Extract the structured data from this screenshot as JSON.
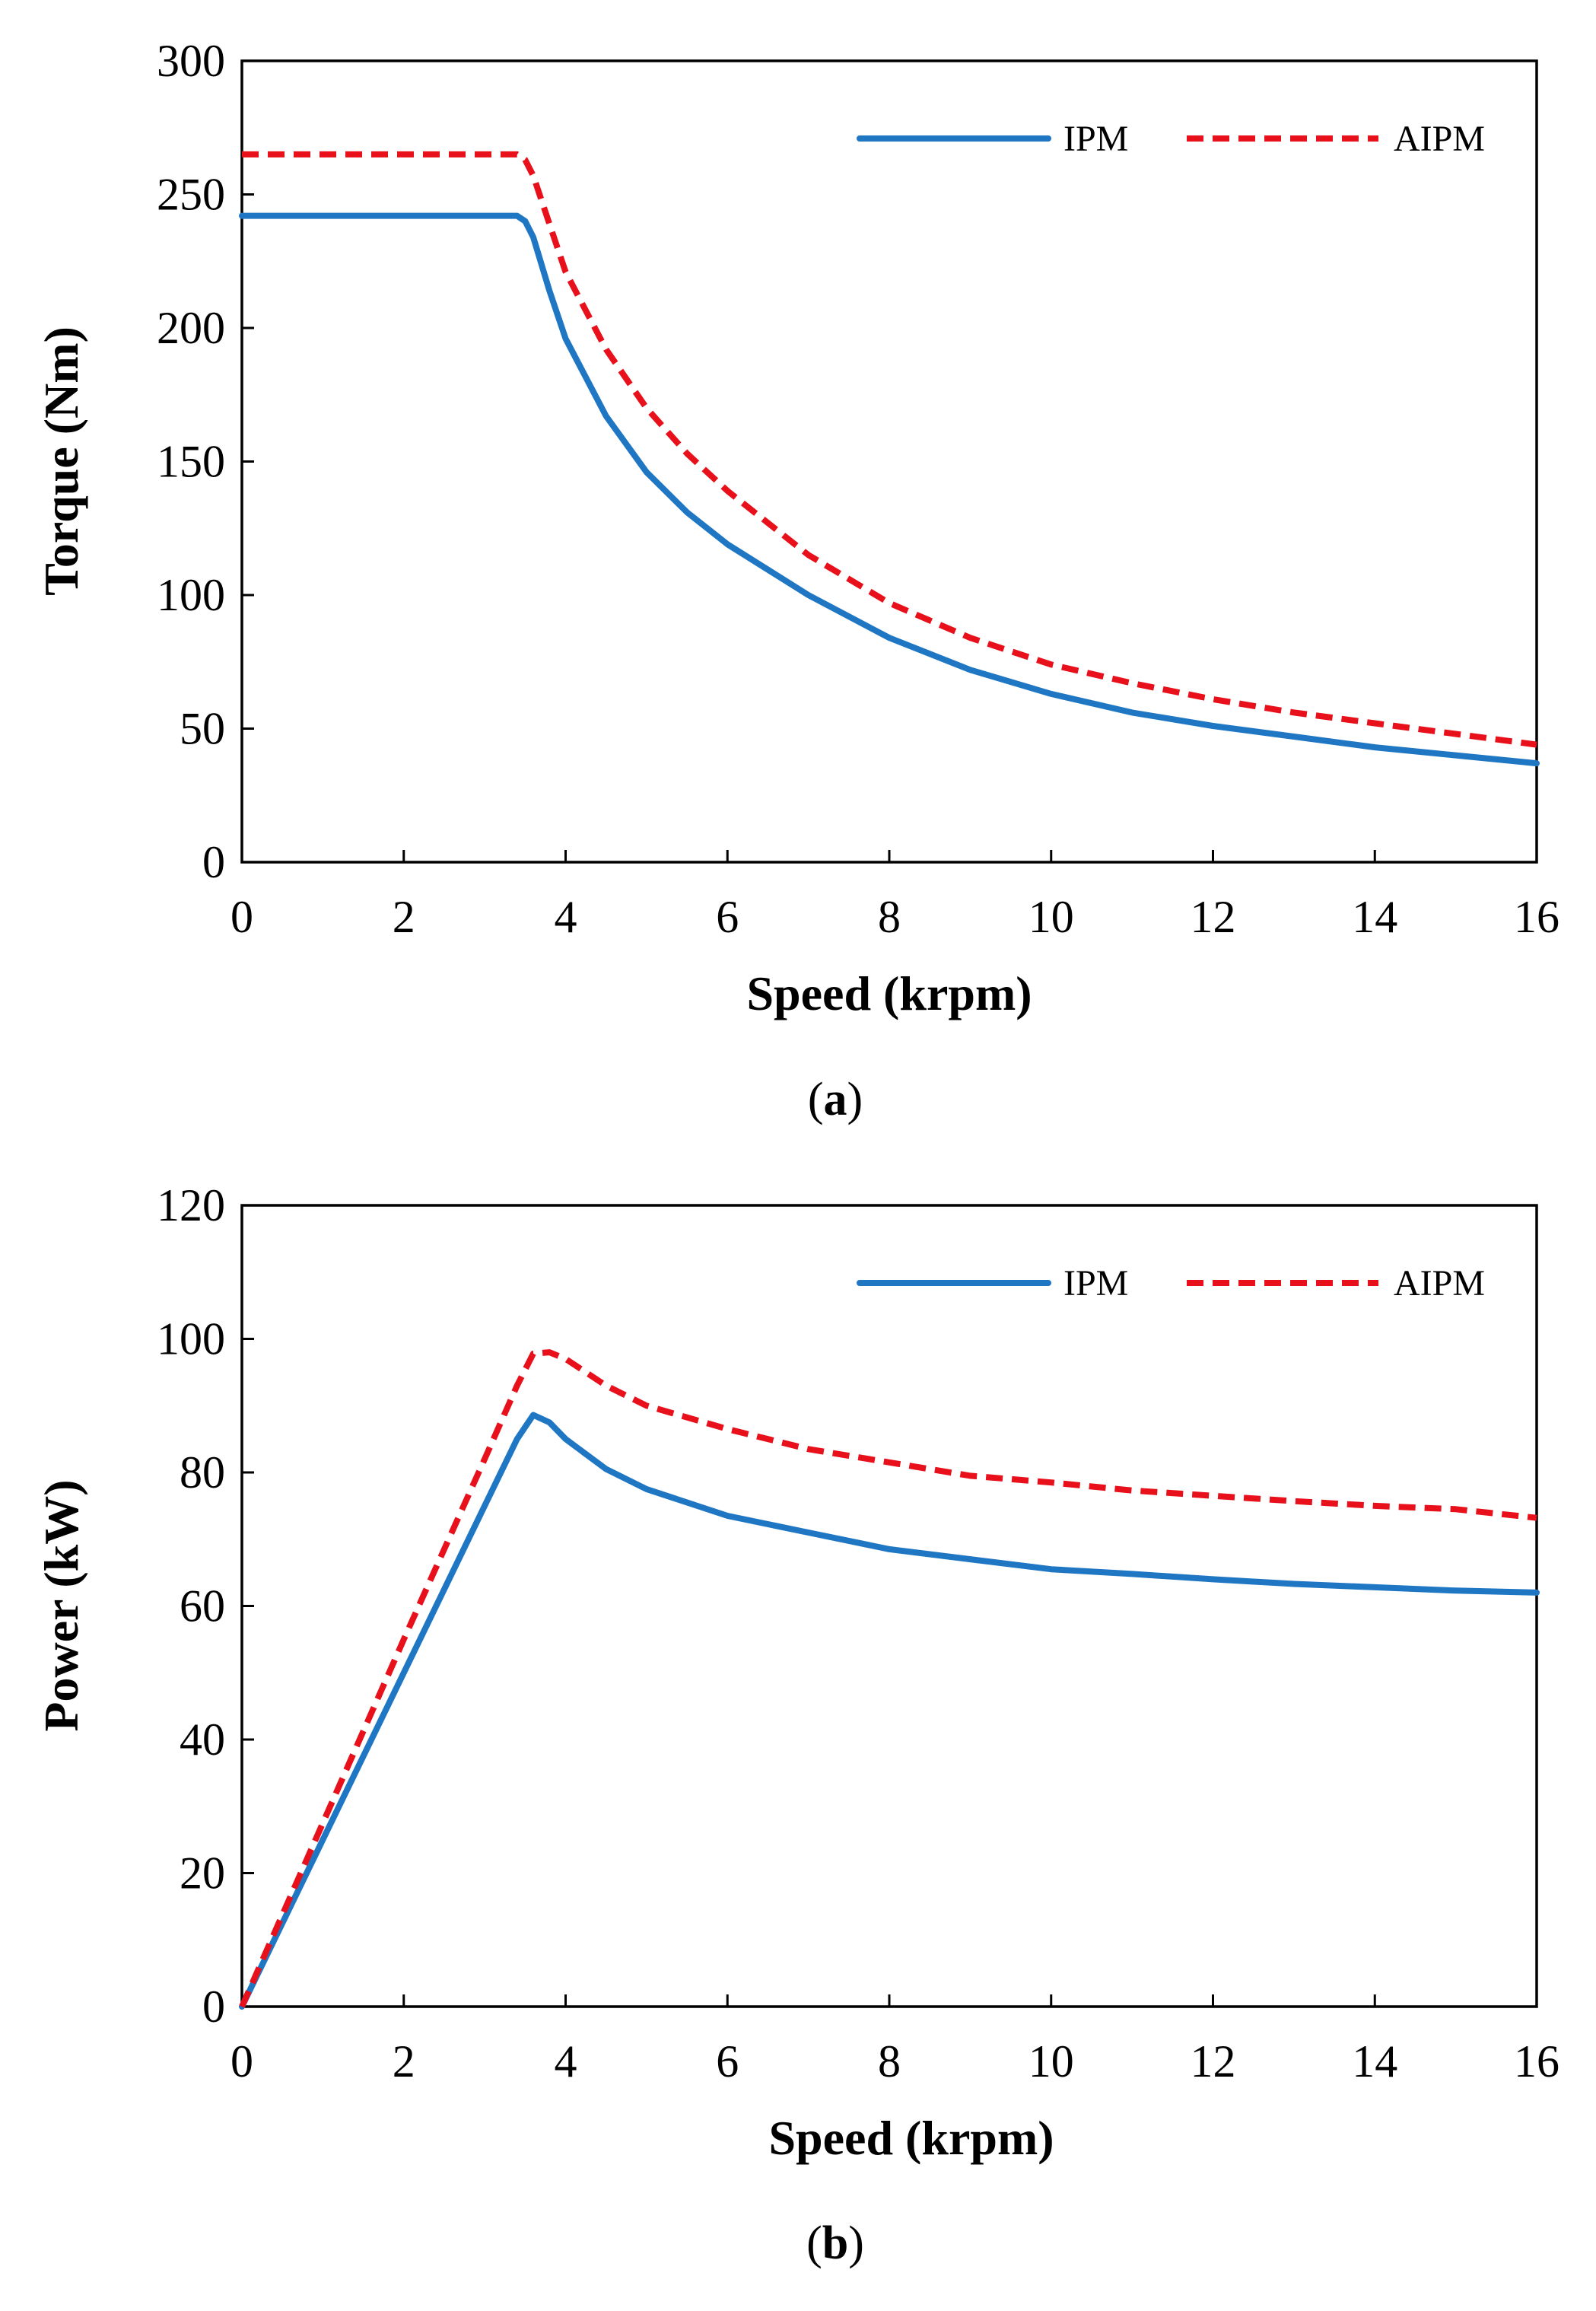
{
  "chart_data": [
    {
      "id": "torque",
      "type": "line",
      "caption_label": "a",
      "xlabel": "Speed (krpm)",
      "ylabel": "Torque (Nm)",
      "xlim": [
        0,
        16
      ],
      "ylim": [
        0,
        300
      ],
      "xticks": [
        "0",
        "2",
        "4",
        "6",
        "8",
        "10",
        "12",
        "14",
        "16"
      ],
      "yticks": [
        "0",
        "50",
        "100",
        "150",
        "200",
        "250",
        "300"
      ],
      "grid": false,
      "legend_position": "top-right",
      "series": [
        {
          "name": "IPM",
          "color": "#1f77c4",
          "style": "solid",
          "x": [
            0,
            1,
            2,
            3,
            3.4,
            3.5,
            3.6,
            3.8,
            4,
            4.5,
            5,
            5.5,
            6,
            7,
            8,
            9,
            10,
            11,
            12,
            13,
            14,
            15,
            16
          ],
          "y": [
            242,
            242,
            242,
            242,
            242,
            240,
            234,
            214,
            196,
            167,
            146,
            131,
            119,
            100,
            84,
            72,
            63,
            56,
            51,
            47,
            43,
            40,
            37
          ]
        },
        {
          "name": "AIPM",
          "color": "#e8101a",
          "style": "dashed",
          "x": [
            0,
            1,
            2,
            3,
            3.4,
            3.5,
            3.6,
            3.8,
            4,
            4.5,
            5,
            5.5,
            6,
            7,
            8,
            9,
            10,
            11,
            12,
            13,
            14,
            15,
            16
          ],
          "y": [
            265,
            265,
            265,
            265,
            265,
            263,
            257,
            239,
            221,
            192,
            170,
            153,
            139,
            115,
            97,
            84,
            74,
            67,
            61,
            56,
            52,
            48,
            44
          ]
        }
      ]
    },
    {
      "id": "power",
      "type": "line",
      "caption_label": "b",
      "xlabel": "Speed (krpm)",
      "ylabel": "Power (kW)",
      "xlim": [
        0,
        16
      ],
      "ylim": [
        0,
        120
      ],
      "xticks": [
        "0",
        "2",
        "4",
        "6",
        "8",
        "10",
        "12",
        "14",
        "16"
      ],
      "yticks": [
        "0",
        "20",
        "40",
        "60",
        "80",
        "100",
        "120"
      ],
      "grid": false,
      "legend_position": "top-right",
      "series": [
        {
          "name": "IPM",
          "color": "#1f77c4",
          "style": "solid",
          "x": [
            0,
            1,
            2,
            3,
            3.4,
            3.6,
            3.8,
            4,
            4.5,
            5,
            6,
            7,
            8,
            9,
            10,
            11,
            12,
            13,
            14,
            15,
            16
          ],
          "y": [
            0,
            25,
            50,
            75,
            85,
            88.6,
            87.5,
            85,
            80.5,
            77.5,
            73.5,
            71,
            68.5,
            67,
            65.5,
            64.8,
            64,
            63.3,
            62.8,
            62.3,
            62
          ]
        },
        {
          "name": "AIPM",
          "color": "#e8101a",
          "style": "dashed",
          "x": [
            0,
            1,
            2,
            3,
            3.4,
            3.6,
            3.8,
            4,
            4.5,
            5,
            6,
            7,
            8,
            9,
            10,
            11,
            12,
            13,
            14,
            15,
            16
          ],
          "y": [
            0,
            27.5,
            55,
            82,
            93,
            97.8,
            98,
            97,
            93,
            90,
            86.5,
            83.5,
            81.5,
            79.5,
            78.5,
            77.3,
            76.5,
            75.7,
            75,
            74.5,
            73.2
          ]
        }
      ]
    }
  ]
}
